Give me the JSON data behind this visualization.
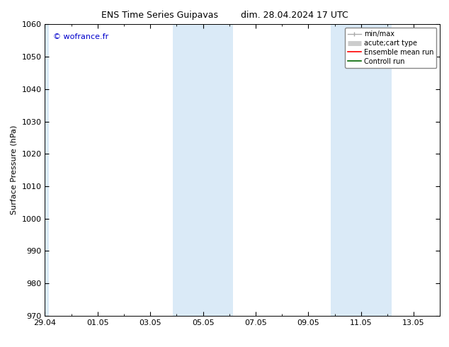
{
  "title_left": "ENS Time Series Guipavas",
  "title_right": "dim. 28.04.2024 17 UTC",
  "ylabel": "Surface Pressure (hPa)",
  "ylim": [
    970,
    1060
  ],
  "yticks": [
    970,
    980,
    990,
    1000,
    1010,
    1020,
    1030,
    1040,
    1050,
    1060
  ],
  "xlim_start": 0.0,
  "xlim_end": 15.0,
  "xtick_labels": [
    "29.04",
    "01.05",
    "03.05",
    "05.05",
    "07.05",
    "09.05",
    "11.05",
    "13.05"
  ],
  "xtick_positions": [
    0.0,
    2.0,
    4.0,
    6.0,
    8.0,
    10.0,
    12.0,
    14.0
  ],
  "background_color": "#ffffff",
  "shaded_bands": [
    {
      "x_start": -0.15,
      "x_end": 0.15
    },
    {
      "x_start": 4.85,
      "x_end": 7.15
    },
    {
      "x_start": 10.85,
      "x_end": 13.15
    }
  ],
  "shaded_color": "#daeaf7",
  "watermark_text": "© wofrance.fr",
  "watermark_color": "#0000cc",
  "title_fontsize": 9,
  "axis_label_fontsize": 8,
  "tick_fontsize": 8,
  "watermark_fontsize": 8,
  "legend_fontsize": 7
}
